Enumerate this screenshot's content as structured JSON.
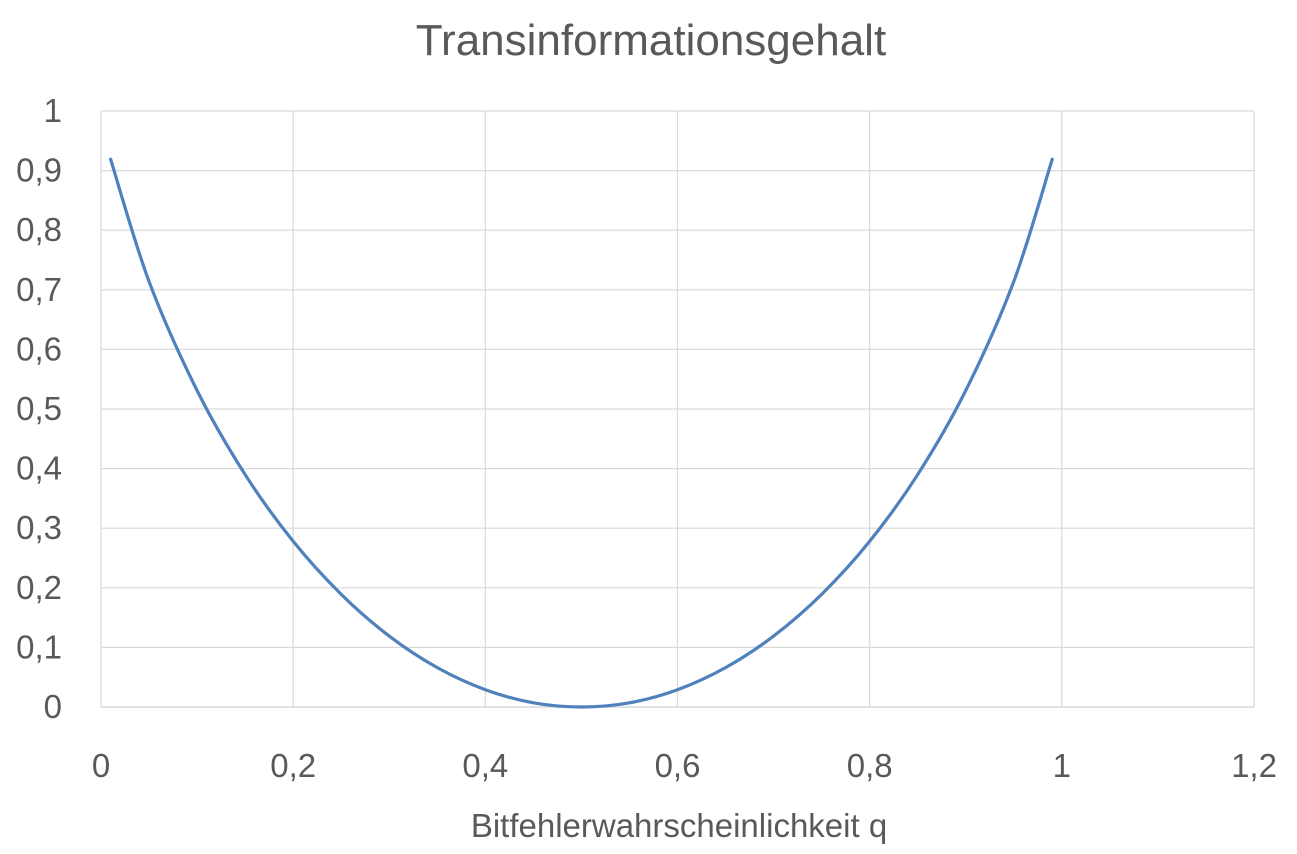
{
  "chart_data": {
    "type": "line",
    "title": "Transinformationsgehalt",
    "xlabel": "Bitfehlerwahrscheinlichkeit q",
    "ylabel": "",
    "xlim": [
      0,
      1.2
    ],
    "ylim": [
      0,
      1
    ],
    "x_ticks": [
      0,
      0.2,
      0.4,
      0.6,
      0.8,
      1,
      1.2
    ],
    "x_tick_labels": [
      "0",
      "0,2",
      "0,4",
      "0,6",
      "0,8",
      "1",
      "1,2"
    ],
    "y_ticks": [
      0,
      0.1,
      0.2,
      0.3,
      0.4,
      0.5,
      0.6,
      0.7,
      0.8,
      0.9,
      1
    ],
    "y_tick_labels": [
      "0",
      "0,1",
      "0,2",
      "0,3",
      "0,4",
      "0,5",
      "0,6",
      "0,7",
      "0,8",
      "0,9",
      "1"
    ],
    "grid": true,
    "legend": "none",
    "series_color": "#4f81bd",
    "series": [
      {
        "x": [
          0.01,
          0.05,
          0.1,
          0.15,
          0.2,
          0.25,
          0.3,
          0.35,
          0.4,
          0.45,
          0.5,
          0.55,
          0.6,
          0.65,
          0.7,
          0.75,
          0.8,
          0.85,
          0.9,
          0.95,
          0.99
        ],
        "values": [
          0.919,
          0.714,
          0.531,
          0.39,
          0.278,
          0.189,
          0.119,
          0.066,
          0.029,
          0.007,
          0.0,
          0.007,
          0.029,
          0.066,
          0.119,
          0.189,
          0.278,
          0.39,
          0.531,
          0.714,
          0.919
        ]
      }
    ]
  }
}
